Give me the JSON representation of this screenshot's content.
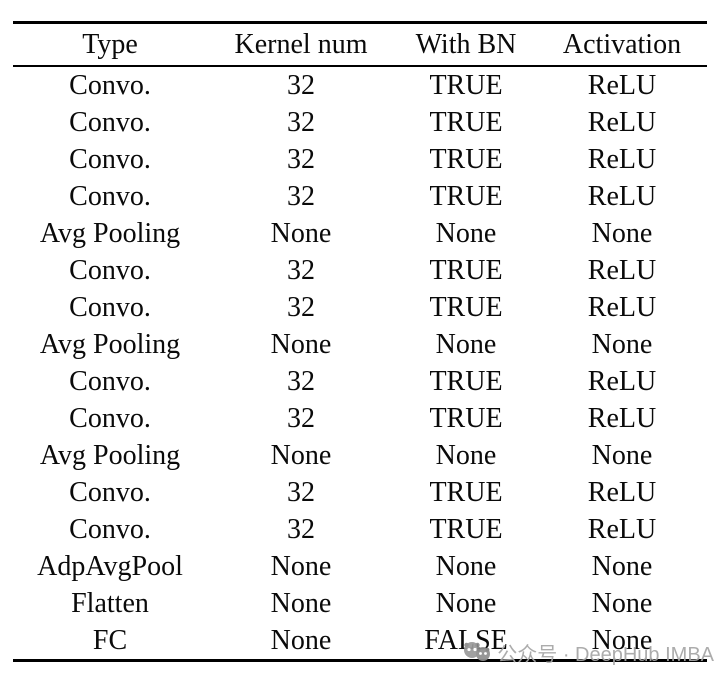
{
  "table": {
    "columns": [
      "Type",
      "Kernel num",
      "With BN",
      "Activation"
    ],
    "rows": [
      [
        "Convo.",
        "32",
        "TRUE",
        "ReLU"
      ],
      [
        "Convo.",
        "32",
        "TRUE",
        "ReLU"
      ],
      [
        "Convo.",
        "32",
        "TRUE",
        "ReLU"
      ],
      [
        "Convo.",
        "32",
        "TRUE",
        "ReLU"
      ],
      [
        "Avg Pooling",
        "None",
        "None",
        "None"
      ],
      [
        "Convo.",
        "32",
        "TRUE",
        "ReLU"
      ],
      [
        "Convo.",
        "32",
        "TRUE",
        "ReLU"
      ],
      [
        "Avg Pooling",
        "None",
        "None",
        "None"
      ],
      [
        "Convo.",
        "32",
        "TRUE",
        "ReLU"
      ],
      [
        "Convo.",
        "32",
        "TRUE",
        "ReLU"
      ],
      [
        "Avg Pooling",
        "None",
        "None",
        "None"
      ],
      [
        "Convo.",
        "32",
        "TRUE",
        "ReLU"
      ],
      [
        "Convo.",
        "32",
        "TRUE",
        "ReLU"
      ],
      [
        "AdpAvgPool",
        "None",
        "None",
        "None"
      ],
      [
        "Flatten",
        "None",
        "None",
        "None"
      ],
      [
        "FC",
        "None",
        "FALSE",
        "None"
      ]
    ]
  },
  "watermark": {
    "icon": "wechat-emoji-icon",
    "text": "公众号 · DeepHub IMBA"
  },
  "colors": {
    "text": "#0a0a0a",
    "rule": "#000000",
    "watermark_gray": "#a6a6a6",
    "background": "#ffffff"
  }
}
